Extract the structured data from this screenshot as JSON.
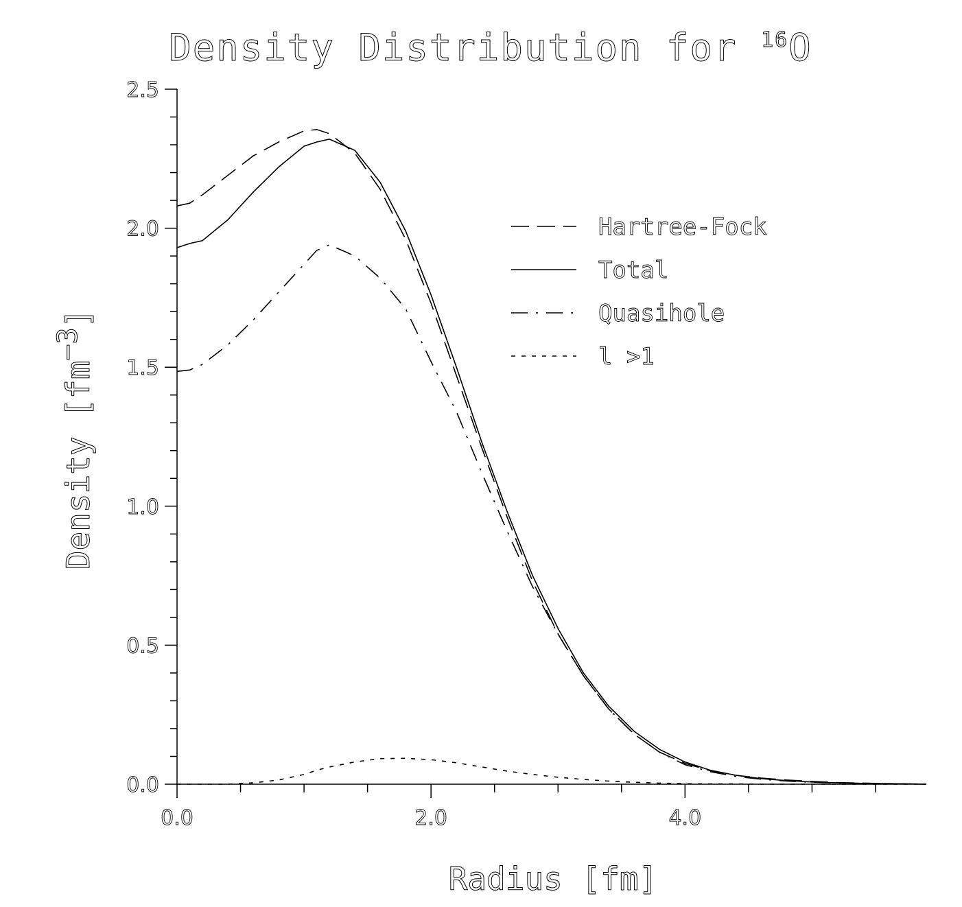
{
  "chart_data": {
    "type": "line",
    "title": "Density Distribution for ",
    "title_superscript": "16",
    "title_suffix": "O",
    "xlabel": "Radius [fm]",
    "ylabel": "Density [fm",
    "ylabel_exponent": "−3",
    "ylabel_close": "]",
    "xlim": [
      0,
      5.9
    ],
    "ylim": [
      0,
      2.5
    ],
    "x_ticks": [
      0,
      2,
      4
    ],
    "x_tick_labels": [
      "0.0",
      "2.0",
      "4.0"
    ],
    "y_ticks": [
      0,
      0.5,
      1.0,
      1.5,
      2.0,
      2.5
    ],
    "y_tick_labels": [
      "0.0",
      "0.5",
      "1.0",
      "1.5",
      "2.0",
      "2.5"
    ],
    "x": [
      0.0,
      0.1,
      0.2,
      0.4,
      0.6,
      0.8,
      1.0,
      1.1,
      1.2,
      1.4,
      1.6,
      1.8,
      2.0,
      2.2,
      2.4,
      2.6,
      2.8,
      3.0,
      3.2,
      3.4,
      3.6,
      3.8,
      4.0,
      4.2,
      4.4,
      4.6,
      4.8,
      5.0,
      5.2,
      5.4,
      5.6,
      5.8,
      5.9
    ],
    "series": [
      {
        "name": "Hartree-Fock",
        "style": "dashed",
        "values": [
          2.08,
          2.09,
          2.12,
          2.19,
          2.26,
          2.31,
          2.35,
          2.355,
          2.34,
          2.27,
          2.14,
          1.96,
          1.73,
          1.47,
          1.21,
          0.96,
          0.73,
          0.54,
          0.39,
          0.27,
          0.18,
          0.115,
          0.075,
          0.048,
          0.032,
          0.022,
          0.015,
          0.01,
          0.006,
          0.004,
          0.002,
          0.001,
          0.0
        ]
      },
      {
        "name": "Total",
        "style": "solid",
        "values": [
          1.93,
          1.945,
          1.955,
          2.03,
          2.13,
          2.22,
          2.295,
          2.31,
          2.32,
          2.28,
          2.165,
          1.99,
          1.76,
          1.5,
          1.23,
          0.98,
          0.75,
          0.56,
          0.4,
          0.28,
          0.19,
          0.125,
          0.08,
          0.05,
          0.032,
          0.02,
          0.013,
          0.008,
          0.005,
          0.003,
          0.002,
          0.001,
          0.0
        ]
      },
      {
        "name": "Quasihole",
        "style": "dash-dot",
        "values": [
          1.485,
          1.49,
          1.51,
          1.58,
          1.67,
          1.77,
          1.87,
          1.92,
          1.94,
          1.9,
          1.82,
          1.71,
          1.52,
          1.34,
          1.12,
          0.91,
          0.71,
          0.54,
          0.39,
          0.27,
          0.18,
          0.115,
          0.07,
          0.045,
          0.028,
          0.018,
          0.011,
          0.007,
          0.004,
          0.003,
          0.002,
          0.001,
          0.0
        ]
      },
      {
        "name": "l >1",
        "style": "dotted",
        "values": [
          0.0,
          0.0,
          0.0,
          0.0,
          0.005,
          0.015,
          0.035,
          0.05,
          0.062,
          0.08,
          0.092,
          0.093,
          0.088,
          0.077,
          0.062,
          0.047,
          0.035,
          0.025,
          0.017,
          0.011,
          0.007,
          0.004,
          0.002,
          0.001,
          0.001,
          0.0,
          0.0,
          0.0,
          0.0,
          0.0,
          0.0,
          0.0,
          0.0
        ]
      }
    ],
    "legend_placement": "upper-right",
    "grid": false
  }
}
